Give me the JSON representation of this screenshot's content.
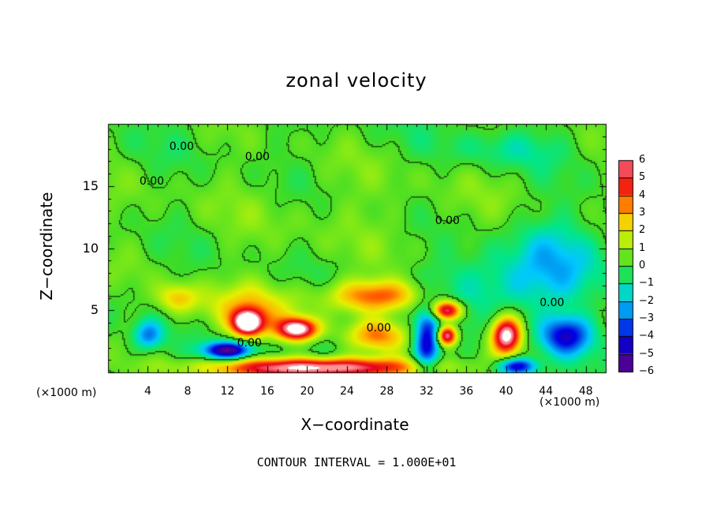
{
  "chart_data": {
    "type": "heatmap",
    "title": "zonal velocity",
    "xlabel": "X−coordinate",
    "ylabel": "Z−coordinate",
    "x_unit_left": "(×1000 m)",
    "x_unit_right": "(×1000 m)",
    "xlim": [
      0,
      50
    ],
    "ylim": [
      0,
      20
    ],
    "x_ticks": [
      4,
      8,
      12,
      16,
      20,
      24,
      28,
      32,
      36,
      40,
      44,
      48
    ],
    "y_ticks": [
      5,
      10,
      15
    ],
    "colorbar": {
      "min": -6,
      "max": 6,
      "ticks": [
        6,
        5,
        4,
        3,
        2,
        1,
        0,
        -1,
        -2,
        -3,
        -4,
        -5,
        -6
      ],
      "tick_labels": [
        "6",
        "5",
        "4",
        "3",
        "2",
        "1",
        "0",
        "−1",
        "−2",
        "−3",
        "−4",
        "−5",
        "−6"
      ]
    },
    "contour_labels": [
      {
        "text": "0.00",
        "x": 7.4,
        "y": 18.1
      },
      {
        "text": "0.00",
        "x": 15.0,
        "y": 17.3
      },
      {
        "text": "0.00",
        "x": 4.4,
        "y": 15.3
      },
      {
        "text": "0.00",
        "x": 34.1,
        "y": 12.1
      },
      {
        "text": "0.00",
        "x": 44.6,
        "y": 5.5
      },
      {
        "text": "0.00",
        "x": 27.2,
        "y": 3.5
      },
      {
        "text": "0.00",
        "x": 14.2,
        "y": 2.3
      }
    ],
    "features": [
      {
        "x": 25,
        "y": 13,
        "v": 0.5,
        "rx": 25,
        "ry": 5
      },
      {
        "x": 40,
        "y": 7,
        "v": -1.8,
        "rx": 8,
        "ry": 2.5
      },
      {
        "x": 14,
        "y": 5,
        "v": 2.5,
        "rx": 5,
        "ry": 2
      },
      {
        "x": 14,
        "y": 4,
        "v": 7,
        "rx": 1.5,
        "ry": 1
      },
      {
        "x": 19,
        "y": 3.5,
        "v": 7,
        "rx": 2,
        "ry": 0.9
      },
      {
        "x": 12,
        "y": 1.8,
        "v": -5.5,
        "rx": 2.5,
        "ry": 0.7
      },
      {
        "x": 27,
        "y": 6.2,
        "v": 4,
        "rx": 5,
        "ry": 1.3
      },
      {
        "x": 34,
        "y": 5,
        "v": 6.5,
        "rx": 1.5,
        "ry": 0.8
      },
      {
        "x": 34,
        "y": 3,
        "v": 6.5,
        "rx": 1,
        "ry": 0.8
      },
      {
        "x": 32,
        "y": 2.5,
        "v": -4.5,
        "rx": 1.3,
        "ry": 2.5
      },
      {
        "x": 40,
        "y": 3,
        "v": 7,
        "rx": 1.5,
        "ry": 1.5
      },
      {
        "x": 46,
        "y": 3,
        "v": -4,
        "rx": 2.5,
        "ry": 1.5
      },
      {
        "x": 41,
        "y": 0.5,
        "v": -5,
        "rx": 2,
        "ry": 0.7
      },
      {
        "x": 21,
        "y": 0.4,
        "v": 7,
        "rx": 10,
        "ry": 0.8
      },
      {
        "x": 4,
        "y": 3,
        "v": -3,
        "rx": 1.5,
        "ry": 1.2
      },
      {
        "x": 7,
        "y": 6,
        "v": 2.5,
        "rx": 2,
        "ry": 1.2
      },
      {
        "x": 27,
        "y": 3,
        "v": 3,
        "rx": 3,
        "ry": 1.2
      },
      {
        "x": 40,
        "y": 18,
        "v": -1,
        "rx": 6,
        "ry": 1.5
      },
      {
        "x": 45,
        "y": 10,
        "v": -1.5,
        "rx": 5,
        "ry": 3
      }
    ]
  },
  "footnote": "CONTOUR INTERVAL = 1.000E+01"
}
